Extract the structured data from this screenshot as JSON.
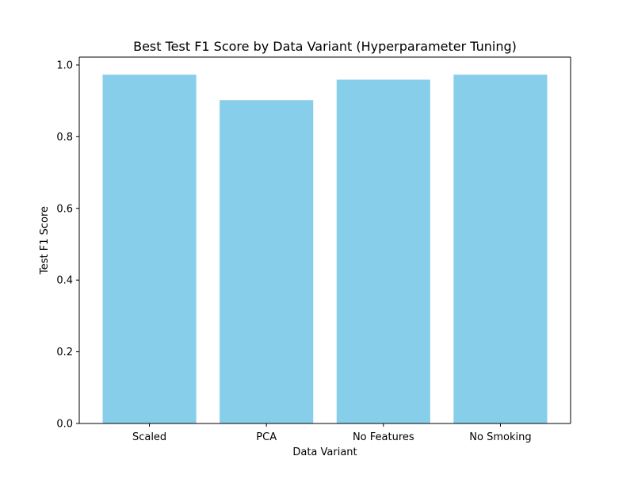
{
  "chart_data": {
    "type": "bar",
    "title": "Best Test F1 Score by Data Variant (Hyperparameter Tuning)",
    "xlabel": "Data Variant",
    "ylabel": "Test F1 Score",
    "categories": [
      "Scaled",
      "PCA",
      "No Features",
      "No Smoking"
    ],
    "values": [
      0.973,
      0.902,
      0.959,
      0.973
    ],
    "ylim": [
      0,
      1.022
    ],
    "yticks": [
      0.0,
      0.2,
      0.4,
      0.6,
      0.8,
      1.0
    ],
    "ytick_labels": [
      "0.0",
      "0.2",
      "0.4",
      "0.6",
      "0.8",
      "1.0"
    ],
    "bar_color": "#87ceeb",
    "grid": false,
    "legend": "none"
  }
}
